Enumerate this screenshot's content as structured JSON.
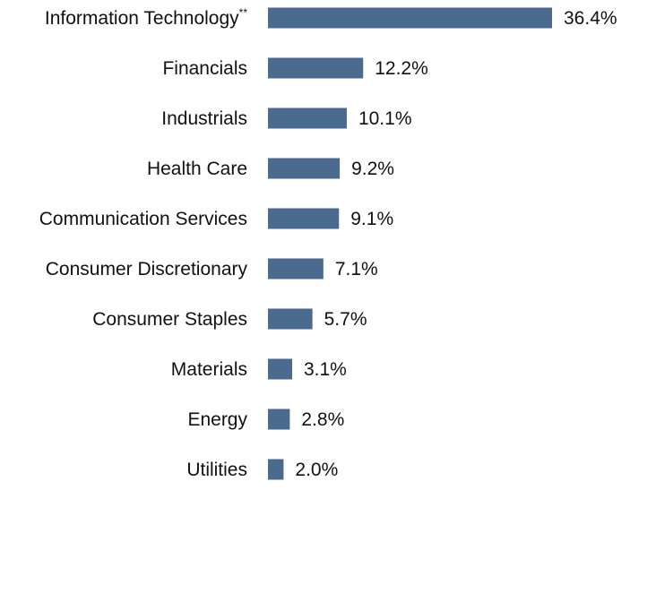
{
  "chart_data": {
    "type": "bar",
    "orientation": "horizontal",
    "categories": [
      "Information Technology",
      "Financials",
      "Industrials",
      "Health Care",
      "Communication Services",
      "Consumer Discretionary",
      "Consumer Staples",
      "Materials",
      "Energy",
      "Utilities"
    ],
    "category_markers": [
      "**",
      "",
      "",
      "",
      "",
      "",
      "",
      "",
      "",
      ""
    ],
    "values": [
      36.4,
      12.2,
      10.1,
      9.2,
      9.1,
      7.1,
      5.7,
      3.1,
      2.8,
      2.0
    ],
    "value_labels": [
      "36.4%",
      "12.2%",
      "10.1%",
      "9.2%",
      "9.1%",
      "7.1%",
      "5.7%",
      "3.1%",
      "2.8%",
      "2.0%"
    ],
    "title": "",
    "xlabel": "",
    "ylabel": "",
    "grid": false,
    "bar_color": "#4a6a8f"
  }
}
